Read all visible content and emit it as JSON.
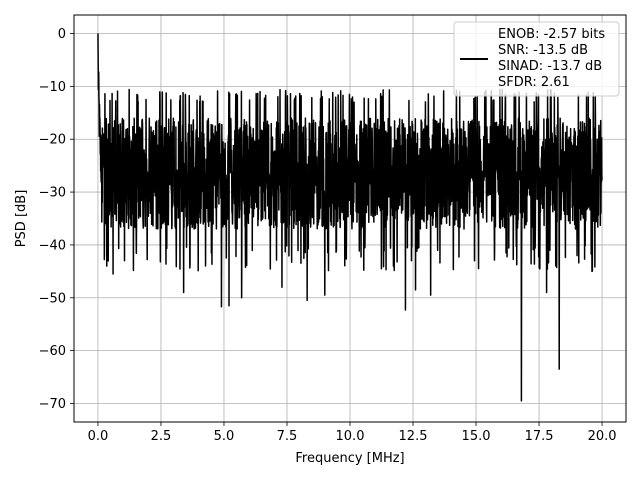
{
  "chart_data": {
    "type": "line",
    "xlabel": "Frequency [MHz]",
    "ylabel": "PSD [dB]",
    "xlim": [
      -0.95,
      20.95
    ],
    "ylim": [
      -73.5,
      3.5
    ],
    "xticks": [
      0.0,
      2.5,
      5.0,
      7.5,
      10.0,
      12.5,
      15.0,
      17.5,
      20.0
    ],
    "xtick_labels": [
      "0.0",
      "2.5",
      "5.0",
      "7.5",
      "10.0",
      "12.5",
      "15.0",
      "17.5",
      "20.0"
    ],
    "yticks": [
      0,
      -10,
      -20,
      -30,
      -40,
      -50,
      -60,
      -70
    ],
    "ytick_labels": [
      "0",
      "−10",
      "−20",
      "−30",
      "−40",
      "−50",
      "−60",
      "−70"
    ],
    "grid": true,
    "legend_placement": "top-right",
    "series": [
      {
        "color": "#000000",
        "x_range": [
          0,
          20
        ],
        "peak_at_dc": 0,
        "noise_floor_mean": -27,
        "noise_band": [
          -40,
          -13
        ],
        "deep_nulls": [
          {
            "x": 0.35,
            "y": -44
          },
          {
            "x": 0.6,
            "y": -45.5
          },
          {
            "x": 3.4,
            "y": -49
          },
          {
            "x": 4.9,
            "y": -51.7
          },
          {
            "x": 5.2,
            "y": -51.5
          },
          {
            "x": 5.7,
            "y": -50
          },
          {
            "x": 7.3,
            "y": -48
          },
          {
            "x": 8.3,
            "y": -50.5
          },
          {
            "x": 9.0,
            "y": -49.5
          },
          {
            "x": 12.2,
            "y": -52.3
          },
          {
            "x": 12.6,
            "y": -48.5
          },
          {
            "x": 13.2,
            "y": -49.5
          },
          {
            "x": 16.8,
            "y": -69.5
          },
          {
            "x": 17.8,
            "y": -49
          },
          {
            "x": 18.3,
            "y": -63.5
          },
          {
            "x": 19.6,
            "y": -45
          }
        ]
      }
    ],
    "legend": {
      "lines": [
        "ENOB: -2.57 bits",
        "SNR: -13.5 dB",
        "SINAD: -13.7 dB",
        "SFDR: 2.61"
      ],
      "color": "#000000"
    }
  }
}
